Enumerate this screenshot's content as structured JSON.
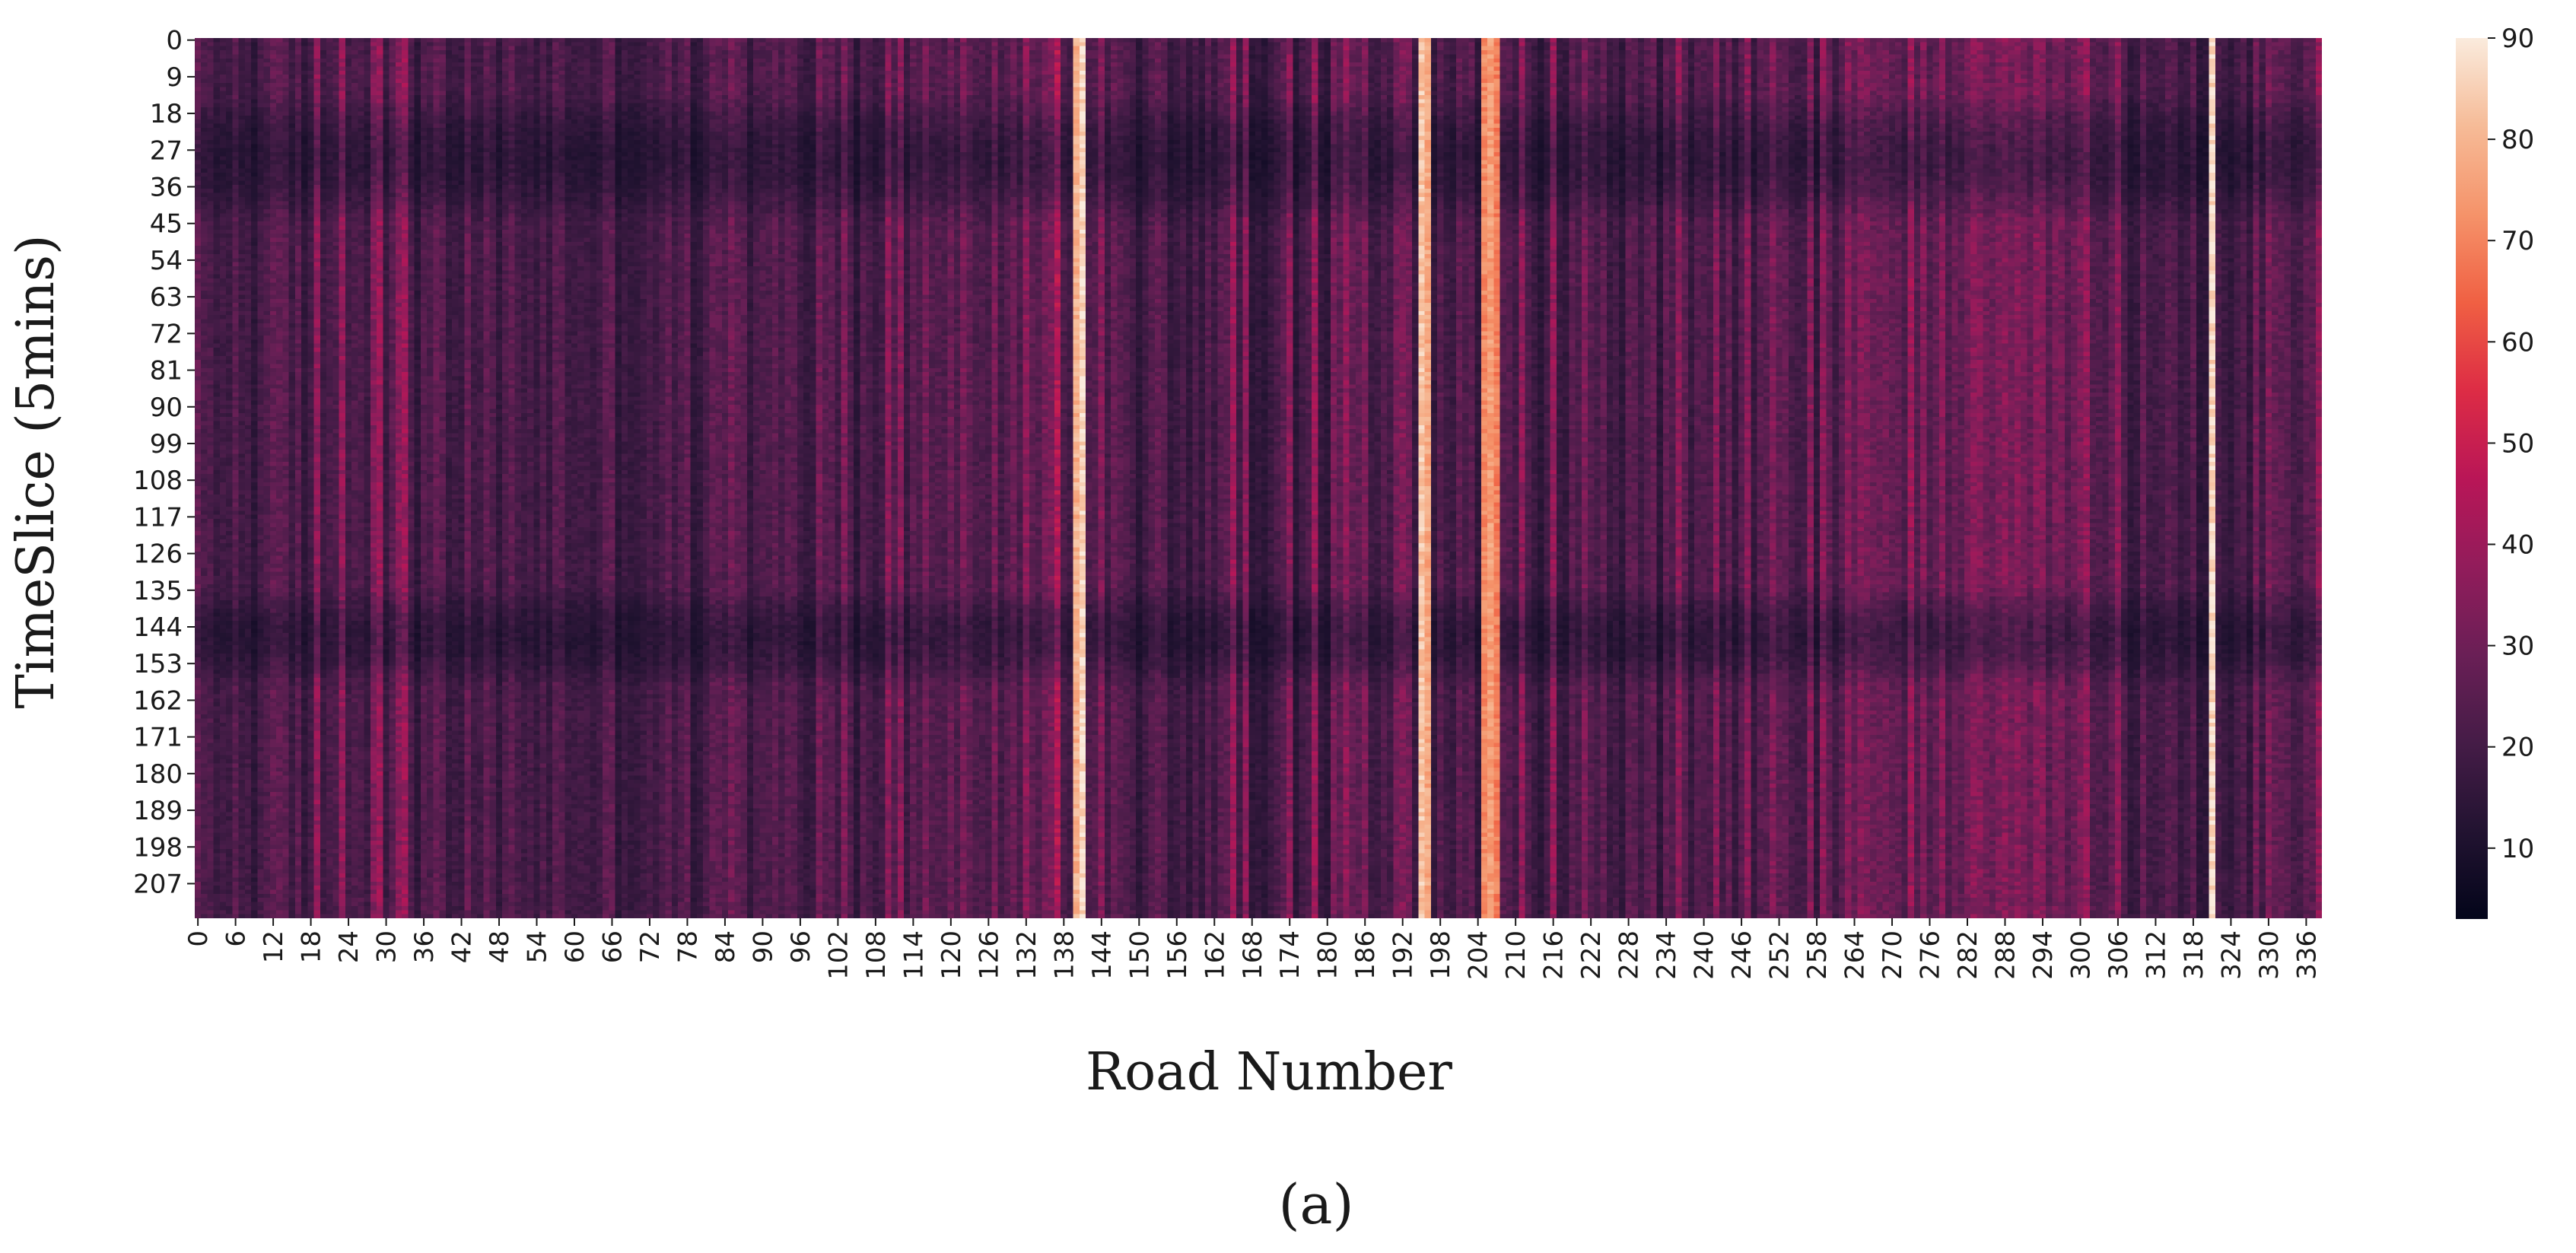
{
  "figure": {
    "caption": "(a)"
  },
  "chart_data": {
    "type": "heatmap",
    "xlabel": "Road Number",
    "ylabel": "TimeSlice (5mins)",
    "x_count": 339,
    "y_count": 216,
    "x_ticks": [
      "0",
      "6",
      "12",
      "18",
      "24",
      "30",
      "36",
      "42",
      "48",
      "54",
      "60",
      "66",
      "72",
      "78",
      "84",
      "90",
      "96",
      "102",
      "108",
      "114",
      "120",
      "126",
      "132",
      "138",
      "144",
      "150",
      "156",
      "162",
      "168",
      "174",
      "180",
      "186",
      "192",
      "198",
      "204",
      "210",
      "216",
      "222",
      "228",
      "234",
      "240",
      "246",
      "252",
      "258",
      "264",
      "270",
      "276",
      "282",
      "288",
      "294",
      "300",
      "306",
      "312",
      "318",
      "324",
      "330",
      "336"
    ],
    "y_ticks": [
      "0",
      "9",
      "18",
      "27",
      "36",
      "45",
      "54",
      "63",
      "72",
      "81",
      "90",
      "99",
      "108",
      "117",
      "126",
      "135",
      "144",
      "153",
      "162",
      "171",
      "180",
      "189",
      "198",
      "207"
    ],
    "colorbar": {
      "min": 3,
      "max": 90,
      "ticks": [
        "10",
        "20",
        "30",
        "40",
        "50",
        "60",
        "70",
        "80",
        "90"
      ],
      "colormap": "rocket",
      "colors": [
        "#03051a",
        "#221331",
        "#451c47",
        "#6a1f56",
        "#921c5b",
        "#b91657",
        "#dd2c45",
        "#f06043",
        "#f5936a",
        "#f6bb97",
        "#faebdd"
      ]
    },
    "bright_columns": [
      {
        "road": 140,
        "level": 80
      },
      {
        "road": 141,
        "level": 88
      },
      {
        "road": 195,
        "level": 84
      },
      {
        "road": 196,
        "level": 78
      },
      {
        "road": 205,
        "level": 72
      },
      {
        "road": 206,
        "level": 76
      },
      {
        "road": 207,
        "level": 70
      },
      {
        "road": 321,
        "level": 88
      }
    ],
    "dark_bands_timeslice": [
      [
        18,
        40
      ],
      [
        138,
        155
      ]
    ]
  }
}
